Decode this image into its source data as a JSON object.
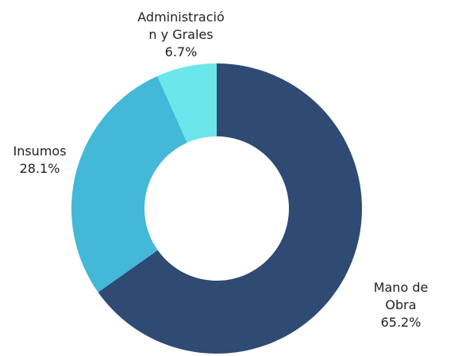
{
  "chart_data": {
    "type": "donut",
    "categories": [
      "Mano de Obra",
      "Insumos",
      "Administració\nn y Grales"
    ],
    "values": [
      65.2,
      28.1,
      6.7
    ],
    "value_labels": [
      "65.2%",
      "28.1%",
      "6.7%"
    ],
    "colors": [
      "#2f4a73",
      "#43b8d8",
      "#6be6ea"
    ]
  }
}
